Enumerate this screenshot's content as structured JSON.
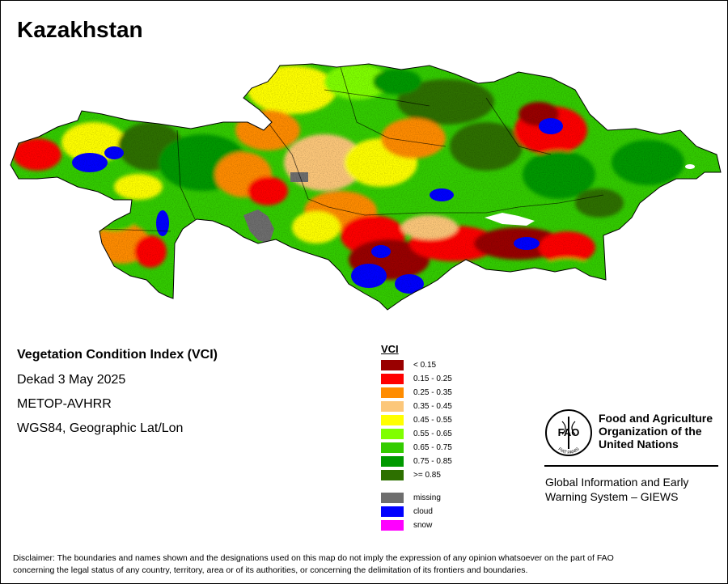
{
  "map": {
    "country_title": "Kazakhstan",
    "product_title": "Vegetation Condition Index (VCI)",
    "dekad": "Dekad 3 May 2025",
    "sensor": "METOP-AVHRR",
    "projection": "WGS84, Geographic Lat/Lon"
  },
  "legend": {
    "title": "VCI",
    "classes": [
      {
        "label": "< 0.15",
        "color": "#990000"
      },
      {
        "label": "0.15 - 0.25",
        "color": "#ff0000"
      },
      {
        "label": "0.25 - 0.35",
        "color": "#ff8c00"
      },
      {
        "label": "0.35 - 0.45",
        "color": "#fcc77a"
      },
      {
        "label": "0.45 - 0.55",
        "color": "#ffff00"
      },
      {
        "label": "0.55 - 0.65",
        "color": "#80ff00"
      },
      {
        "label": "0.65 - 0.75",
        "color": "#33cc00"
      },
      {
        "label": "0.75 - 0.85",
        "color": "#009900"
      },
      {
        "label": ">= 0.85",
        "color": "#2d7000"
      }
    ],
    "other": [
      {
        "label": "missing",
        "color": "#6e6e6e"
      },
      {
        "label": "cloud",
        "color": "#0000ff"
      },
      {
        "label": "snow",
        "color": "#ff00ff"
      }
    ]
  },
  "fao": {
    "name_line1": "Food and Agriculture",
    "name_line2": "Organization of the",
    "name_line3": "United Nations",
    "logo_text": "FAO",
    "logo_motto": "FIAT PANIS",
    "giews_line1": "Global Information and Early",
    "giews_line2": "Warning System – GIEWS"
  },
  "disclaimer": {
    "line1": "Disclaimer: The boundaries and names shown and the designations used on this map do not imply the expression of any opinion whatsoever on the part of FAO",
    "line2": "concerning the legal status of any country, territory, area or of its authorities, or concerning the delimitation of its frontiers and boundaries."
  }
}
